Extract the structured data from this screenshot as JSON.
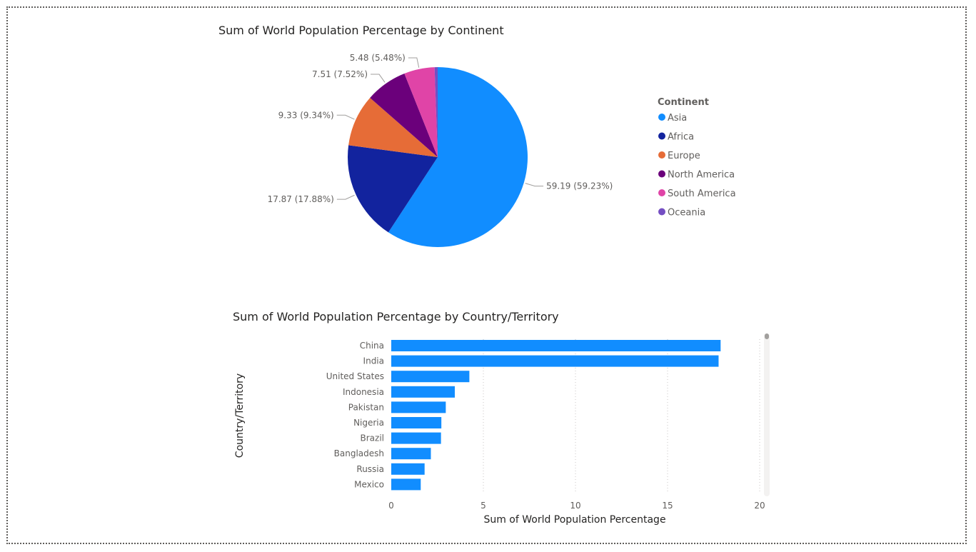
{
  "pie": {
    "title": "Sum of World Population Percentage by Continent",
    "legend_title": "Continent"
  },
  "bar": {
    "title": "Sum of World Population Percentage by Country/Territory",
    "xlabel": "Sum of World Population Percentage",
    "ylabel": "Country/Territory"
  },
  "chart_data": [
    {
      "type": "pie",
      "title": "Sum of World Population Percentage by Continent",
      "legend_title": "Continent",
      "legend_position": "right",
      "slices": [
        {
          "name": "Asia",
          "value": 59.19,
          "label": "59.19 (59.23%)",
          "color": "#118DFF"
        },
        {
          "name": "Africa",
          "value": 17.87,
          "label": "17.87 (17.88%)",
          "color": "#12239E"
        },
        {
          "name": "Europe",
          "value": 9.33,
          "label": "9.33 (9.34%)",
          "color": "#E66C37"
        },
        {
          "name": "North America",
          "value": 7.51,
          "label": "7.51 (7.52%)",
          "color": "#6B007B"
        },
        {
          "name": "South America",
          "value": 5.48,
          "label": "5.48 (5.48%)",
          "color": "#E044A7"
        },
        {
          "name": "Oceania",
          "value": 0.55,
          "label": "",
          "color": "#744EC2"
        }
      ]
    },
    {
      "type": "bar",
      "orientation": "horizontal",
      "title": "Sum of World Population Percentage by Country/Territory",
      "xlabel": "Sum of World Population Percentage",
      "ylabel": "Country/Territory",
      "categories": [
        "China",
        "India",
        "United States",
        "Indonesia",
        "Pakistan",
        "Nigeria",
        "Brazil",
        "Bangladesh",
        "Russia",
        "Mexico"
      ],
      "values": [
        17.88,
        17.77,
        4.24,
        3.45,
        2.96,
        2.72,
        2.7,
        2.15,
        1.81,
        1.6
      ],
      "xlim": [
        0,
        20
      ],
      "xticks": [
        0,
        5,
        10,
        15,
        20
      ],
      "grid": true,
      "color": "#118DFF"
    }
  ]
}
